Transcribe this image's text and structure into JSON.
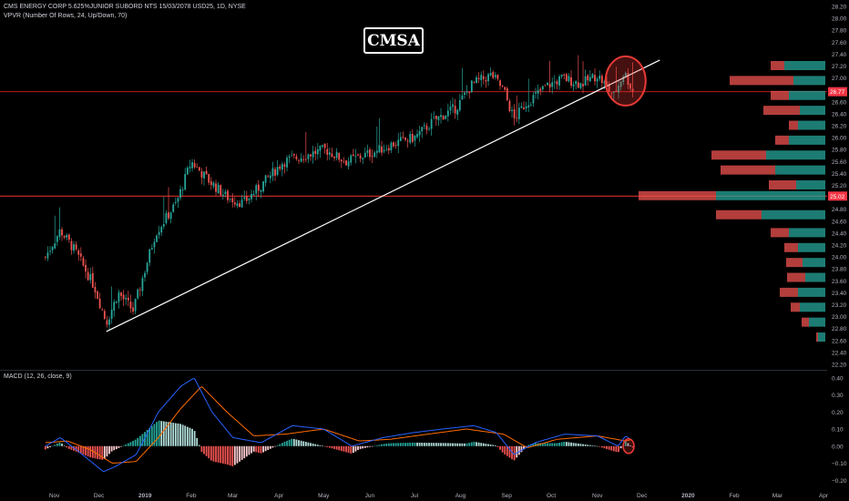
{
  "header": {
    "title": "CMS ENERGY CORP 5.625%JUNIOR SUBORD NTS 15/03/2078 USD25, 1D, NYSE",
    "indicator": "VPVR (Number Of Rows, 24, Up/Down, 70)",
    "macd_label": "MACD (12, 26, close, 9)",
    "symbol": "CMSA"
  },
  "colors": {
    "background": "#000000",
    "up": "#26a69a",
    "down": "#ef5350",
    "trendline": "#ffffff",
    "level_line": "#b71c1c",
    "macd_line": "#2962ff",
    "signal_line": "#ff6d00",
    "circle": "#e53935"
  },
  "chart_data": [
    {
      "type": "candlestick",
      "price_axis_ticks": [
        "28.20",
        "28.00",
        "27.80",
        "27.60",
        "27.40",
        "27.20",
        "27.00",
        "26.80",
        "26.60",
        "26.40",
        "26.20",
        "26.00",
        "25.80",
        "25.60",
        "25.40",
        "25.20",
        "25.00",
        "24.80",
        "24.60",
        "24.40",
        "24.20",
        "24.00",
        "23.80",
        "23.60",
        "23.40",
        "23.20",
        "23.00",
        "22.80",
        "22.60",
        "22.40",
        "22.20"
      ],
      "time_axis_ticks": [
        "Nov",
        "Dec",
        "2019",
        "Feb",
        "Mar",
        "Apr",
        "May",
        "Jun",
        "Jul",
        "Aug",
        "Sep",
        "Oct",
        "Nov",
        "Dec",
        "2020",
        "Feb",
        "Mar",
        "Apr"
      ],
      "ylim": [
        22.2,
        28.2
      ],
      "current_price": "26.77",
      "support_level": "25.02",
      "close_path": [
        {
          "date": "2018-10-26",
          "close": 24.0
        },
        {
          "date": "2018-11-05",
          "close": 24.45
        },
        {
          "date": "2018-11-15",
          "close": 24.1
        },
        {
          "date": "2018-11-28",
          "close": 23.5
        },
        {
          "date": "2018-12-06",
          "close": 22.9
        },
        {
          "date": "2018-12-14",
          "close": 23.4
        },
        {
          "date": "2018-12-24",
          "close": 23.1
        },
        {
          "date": "2019-01-08",
          "close": 24.4
        },
        {
          "date": "2019-01-22",
          "close": 24.9
        },
        {
          "date": "2019-02-01",
          "close": 25.6
        },
        {
          "date": "2019-02-12",
          "close": 25.3
        },
        {
          "date": "2019-02-25",
          "close": 25.0
        },
        {
          "date": "2019-03-08",
          "close": 24.9
        },
        {
          "date": "2019-03-20",
          "close": 25.2
        },
        {
          "date": "2019-04-04",
          "close": 25.6
        },
        {
          "date": "2019-04-18",
          "close": 25.7
        },
        {
          "date": "2019-05-02",
          "close": 25.8
        },
        {
          "date": "2019-05-16",
          "close": 25.6
        },
        {
          "date": "2019-06-03",
          "close": 25.75
        },
        {
          "date": "2019-06-17",
          "close": 25.9
        },
        {
          "date": "2019-07-01",
          "close": 26.0
        },
        {
          "date": "2019-07-15",
          "close": 26.3
        },
        {
          "date": "2019-07-29",
          "close": 26.5
        },
        {
          "date": "2019-08-09",
          "close": 26.9
        },
        {
          "date": "2019-08-22",
          "close": 27.05
        },
        {
          "date": "2019-08-30",
          "close": 26.8
        },
        {
          "date": "2019-09-06",
          "close": 26.3
        },
        {
          "date": "2019-09-13",
          "close": 26.55
        },
        {
          "date": "2019-09-27",
          "close": 26.85
        },
        {
          "date": "2019-10-09",
          "close": 27.0
        },
        {
          "date": "2019-10-21",
          "close": 26.9
        },
        {
          "date": "2019-11-01",
          "close": 27.05
        },
        {
          "date": "2019-11-12",
          "close": 26.7
        },
        {
          "date": "2019-11-19",
          "close": 27.1
        },
        {
          "date": "2019-11-25",
          "close": 26.77
        }
      ],
      "trendline": {
        "start": {
          "date": "2018-12-06",
          "price": 22.75
        },
        "end": {
          "date": "2019-12-13",
          "price": 27.3
        }
      },
      "highlight_circle": {
        "date": "2019-11-20",
        "price": 26.95
      },
      "volume_profile": [
        {
          "price": 27.2,
          "up": 45,
          "down": 15
        },
        {
          "price": 26.95,
          "up": 35,
          "down": 70
        },
        {
          "price": 26.7,
          "up": 40,
          "down": 20
        },
        {
          "price": 26.45,
          "up": 28,
          "down": 40
        },
        {
          "price": 26.2,
          "up": 30,
          "down": 10
        },
        {
          "price": 25.95,
          "up": 40,
          "down": 15
        },
        {
          "price": 25.7,
          "up": 65,
          "down": 60
        },
        {
          "price": 25.45,
          "up": 55,
          "down": 60
        },
        {
          "price": 25.2,
          "up": 32,
          "down": 30
        },
        {
          "price": 25.02,
          "up": 120,
          "down": 85
        },
        {
          "price": 24.7,
          "up": 70,
          "down": 50
        },
        {
          "price": 24.4,
          "up": 40,
          "down": 20
        },
        {
          "price": 24.15,
          "up": 30,
          "down": 15
        },
        {
          "price": 23.9,
          "up": 25,
          "down": 18
        },
        {
          "price": 23.65,
          "up": 22,
          "down": 20
        },
        {
          "price": 23.4,
          "up": 30,
          "down": 20
        },
        {
          "price": 23.15,
          "up": 28,
          "down": 10
        },
        {
          "price": 22.9,
          "up": 18,
          "down": 8
        },
        {
          "price": 22.65,
          "up": 8,
          "down": 2
        }
      ]
    },
    {
      "type": "bar",
      "name": "MACD (12, 26, close, 9)",
      "ylim": [
        -0.22,
        0.42
      ],
      "axis_ticks": [
        "0.40",
        "0.30",
        "0.20",
        "0.10",
        "0.00",
        "−0.10",
        "−0.20"
      ],
      "macd_path": [
        {
          "date": "2018-10-26",
          "value": 0.0
        },
        {
          "date": "2018-11-05",
          "value": 0.05
        },
        {
          "date": "2018-11-20",
          "value": -0.05
        },
        {
          "date": "2018-12-04",
          "value": -0.15
        },
        {
          "date": "2018-12-12",
          "value": -0.12
        },
        {
          "date": "2018-12-26",
          "value": -0.05
        },
        {
          "date": "2019-01-10",
          "value": 0.2
        },
        {
          "date": "2019-01-25",
          "value": 0.35
        },
        {
          "date": "2019-02-03",
          "value": 0.4
        },
        {
          "date": "2019-02-15",
          "value": 0.2
        },
        {
          "date": "2019-03-01",
          "value": 0.05
        },
        {
          "date": "2019-03-20",
          "value": 0.02
        },
        {
          "date": "2019-04-10",
          "value": 0.12
        },
        {
          "date": "2019-05-01",
          "value": 0.1
        },
        {
          "date": "2019-05-20",
          "value": 0.0
        },
        {
          "date": "2019-06-10",
          "value": 0.05
        },
        {
          "date": "2019-07-01",
          "value": 0.08
        },
        {
          "date": "2019-07-20",
          "value": 0.1
        },
        {
          "date": "2019-08-10",
          "value": 0.12
        },
        {
          "date": "2019-08-25",
          "value": 0.08
        },
        {
          "date": "2019-09-06",
          "value": -0.05
        },
        {
          "date": "2019-09-20",
          "value": 0.02
        },
        {
          "date": "2019-10-10",
          "value": 0.07
        },
        {
          "date": "2019-11-01",
          "value": 0.06
        },
        {
          "date": "2019-11-15",
          "value": 0.0
        },
        {
          "date": "2019-11-20",
          "value": 0.06
        },
        {
          "date": "2019-11-25",
          "value": 0.03
        }
      ],
      "signal_path": [
        {
          "date": "2018-10-26",
          "value": 0.02
        },
        {
          "date": "2018-11-10",
          "value": 0.03
        },
        {
          "date": "2018-11-25",
          "value": -0.02
        },
        {
          "date": "2018-12-10",
          "value": -0.1
        },
        {
          "date": "2018-12-26",
          "value": -0.09
        },
        {
          "date": "2019-01-10",
          "value": 0.05
        },
        {
          "date": "2019-01-25",
          "value": 0.22
        },
        {
          "date": "2019-02-08",
          "value": 0.35
        },
        {
          "date": "2019-02-25",
          "value": 0.2
        },
        {
          "date": "2019-03-15",
          "value": 0.06
        },
        {
          "date": "2019-04-05",
          "value": 0.07
        },
        {
          "date": "2019-05-01",
          "value": 0.1
        },
        {
          "date": "2019-05-25",
          "value": 0.03
        },
        {
          "date": "2019-06-15",
          "value": 0.04
        },
        {
          "date": "2019-07-10",
          "value": 0.07
        },
        {
          "date": "2019-08-05",
          "value": 0.1
        },
        {
          "date": "2019-08-30",
          "value": 0.07
        },
        {
          "date": "2019-09-15",
          "value": -0.01
        },
        {
          "date": "2019-10-05",
          "value": 0.04
        },
        {
          "date": "2019-11-01",
          "value": 0.06
        },
        {
          "date": "2019-11-20",
          "value": 0.03
        },
        {
          "date": "2019-11-25",
          "value": 0.04
        }
      ],
      "highlight_circle": {
        "date": "2019-11-22",
        "value": 0.0
      }
    }
  ]
}
